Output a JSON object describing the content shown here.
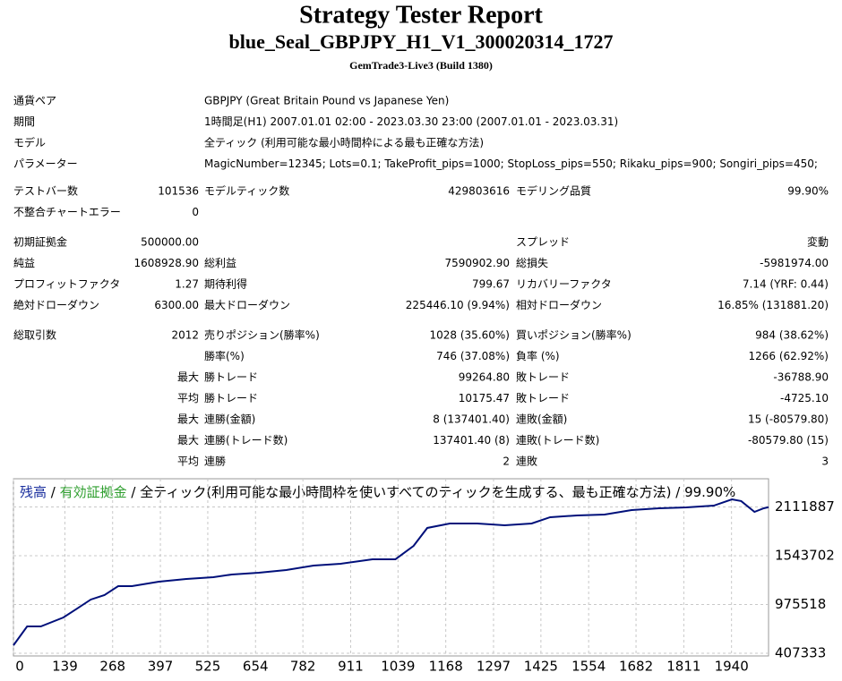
{
  "header": {
    "title": "Strategy Tester Report",
    "subtitle": "blue_Seal_GBPJPY_H1_V1_300020314_1727",
    "build": "GemTrade3-Live3 (Build 1380)"
  },
  "info": [
    [
      "通貨ペア",
      "GBPJPY (Great Britain Pound vs Japanese Yen)"
    ],
    [
      "期間",
      "1時間足(H1) 2007.01.01 02:00 - 2023.03.30 23:00 (2007.01.01 - 2023.03.31)"
    ],
    [
      "モデル",
      "全ティック (利用可能な最小時間枠による最も正確な方法)"
    ],
    [
      "パラメーター",
      "MagicNumber=12345; Lots=0.1; TakeProfit_pips=1000; StopLoss_pips=550; Rikaku_pips=900; Songiri_pips=450;"
    ]
  ],
  "groups": [
    [
      {
        "left": [
          "テストバー数",
          "101536"
        ],
        "mid": [
          "モデルティック数",
          "429803616"
        ],
        "right": [
          "モデリング品質",
          "99.90%"
        ]
      },
      {
        "left": [
          "不整合チャートエラー",
          "0"
        ]
      }
    ],
    [
      {
        "left": [
          "初期証拠金",
          "500000.00"
        ],
        "right": [
          "スプレッド",
          "変動"
        ]
      },
      {
        "left": [
          "純益",
          "1608928.90"
        ],
        "mid": [
          "総利益",
          "7590902.90"
        ],
        "right": [
          "総損失",
          "-5981974.00"
        ]
      },
      {
        "left": [
          "プロフィットファクタ",
          "1.27"
        ],
        "mid": [
          "期待利得",
          "799.67"
        ],
        "right": [
          "リカバリーファクタ",
          "7.14 (YRF: 0.44)"
        ]
      },
      {
        "left": [
          "絶対ドローダウン",
          "6300.00"
        ],
        "mid": [
          "最大ドローダウン",
          "225446.10 (9.94%)"
        ],
        "right": [
          "相対ドローダウン",
          "16.85% (131881.20)"
        ]
      }
    ],
    [
      {
        "left": [
          "総取引数",
          "2012"
        ],
        "mid": [
          "売りポジション(勝率%)",
          "1028 (35.60%)"
        ],
        "right": [
          "買いポジション(勝率%)",
          "984 (38.62%)"
        ]
      },
      {
        "mid": [
          "勝率(%)",
          "746 (37.08%)"
        ],
        "right": [
          "負率 (%)",
          "1266 (62.92%)"
        ]
      },
      {
        "prefix": "最大",
        "mid": [
          "勝トレード",
          "99264.80"
        ],
        "right": [
          "敗トレード",
          "-36788.90"
        ]
      },
      {
        "prefix": "平均",
        "mid": [
          "勝トレード",
          "10175.47"
        ],
        "right": [
          "敗トレード",
          "-4725.10"
        ]
      },
      {
        "prefix": "最大",
        "mid": [
          "連勝(金額)",
          "8 (137401.40)"
        ],
        "right": [
          "連敗(金額)",
          "15 (-80579.80)"
        ]
      },
      {
        "prefix": "最大",
        "mid": [
          "連勝(トレード数)",
          "137401.40 (8)"
        ],
        "right": [
          "連敗(トレード数)",
          "-80579.80 (15)"
        ]
      },
      {
        "prefix": "平均",
        "mid": [
          "連勝",
          "2"
        ],
        "right": [
          "連敗",
          "3"
        ]
      }
    ]
  ],
  "chart_data": {
    "type": "line",
    "legend": [
      {
        "text": "残高",
        "color": "#1a2f9e"
      },
      {
        "text": " / ",
        "color": "#000000"
      },
      {
        "text": "有効証拠金",
        "color": "#2e9e2e"
      },
      {
        "text": " / 全ティック(利用可能な最小時間枠を使いすべてのティックを生成する、最も正確な方法) / 99.90%",
        "color": "#000000"
      }
    ],
    "x": [
      0,
      37,
      74,
      135,
      172,
      209,
      246,
      283,
      320,
      393,
      467,
      540,
      590,
      663,
      737,
      811,
      884,
      970,
      1032,
      1081,
      1118,
      1179,
      1253,
      1327,
      1400,
      1450,
      1523,
      1597,
      1670,
      1744,
      1818,
      1892,
      1941,
      1966,
      2002,
      2027,
      2040
    ],
    "series": [
      {
        "name": "残高",
        "color": "#00107a",
        "values": [
          500000,
          720000,
          720000,
          824000,
          928000,
          1033000,
          1085000,
          1189000,
          1189000,
          1241000,
          1273000,
          1293000,
          1325000,
          1346000,
          1377000,
          1429000,
          1450000,
          1502000,
          1502000,
          1658000,
          1867000,
          1919000,
          1919000,
          1898000,
          1919000,
          1992000,
          2013000,
          2023000,
          2075000,
          2096000,
          2106000,
          2127000,
          2200000,
          2180000,
          2054000,
          2096000,
          2108929
        ]
      }
    ],
    "xlim": [
      0,
      2040
    ],
    "ylim": [
      376000,
      2440000
    ],
    "xticks": [
      0,
      139,
      268,
      397,
      525,
      654,
      782,
      911,
      1039,
      1168,
      1297,
      1425,
      1554,
      1682,
      1811,
      1940
    ],
    "yticks": [
      407333,
      975518,
      1543702,
      2111887
    ],
    "grid": true
  }
}
